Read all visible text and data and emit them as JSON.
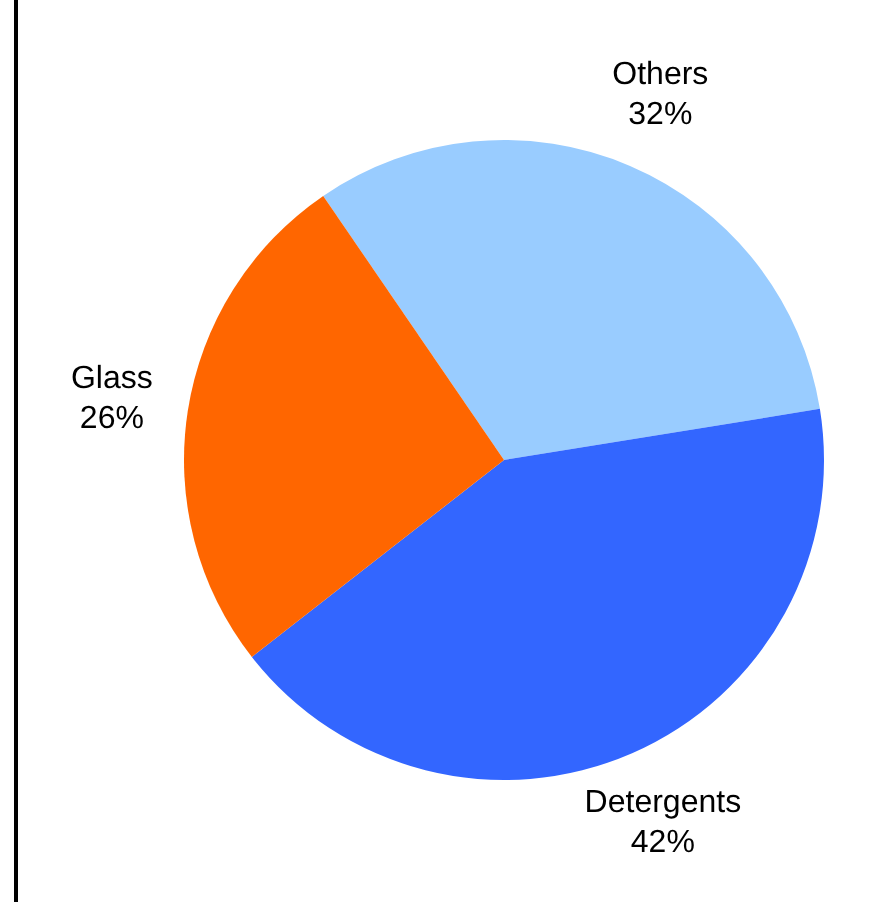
{
  "chart_data": {
    "type": "pie",
    "categories": [
      "Others",
      "Detergents",
      "Glass"
    ],
    "values": [
      32,
      42,
      26
    ],
    "value_labels": [
      "32%",
      "42%",
      "26%"
    ],
    "colors": [
      "#99ccff",
      "#3366ff",
      "#ff6600"
    ],
    "legend": false
  }
}
